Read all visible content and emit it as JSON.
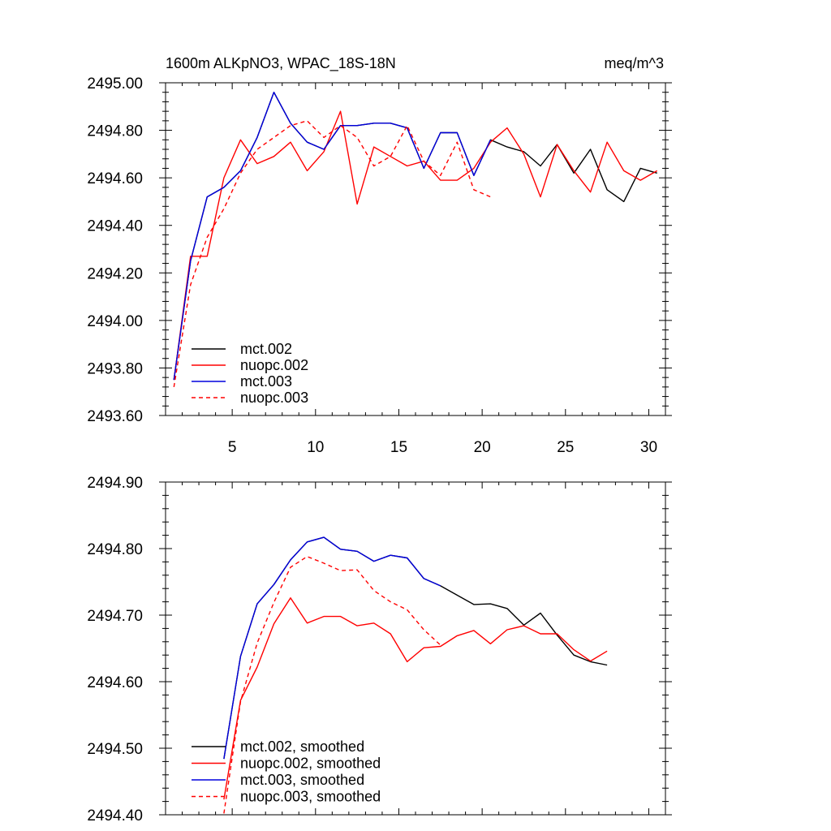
{
  "chart_data": [
    {
      "type": "line",
      "title_left": "1600m ALKpNO3, WPAC_18S-18N",
      "title_right": "meq/m^3",
      "xlabel": "",
      "ylabel": "",
      "xlim": [
        1,
        31
      ],
      "ylim": [
        2493.6,
        2495.0
      ],
      "xticks": [
        5,
        10,
        15,
        20,
        25,
        30
      ],
      "xtick_labels": [
        "5",
        "10",
        "15",
        "20",
        "25",
        "30"
      ],
      "yticks": [
        2493.6,
        2493.8,
        2494.0,
        2494.2,
        2494.4,
        2494.6,
        2494.8,
        2495.0
      ],
      "ytick_labels": [
        "2493.60",
        "2493.80",
        "2494.00",
        "2494.20",
        "2494.40",
        "2494.60",
        "2494.80",
        "2495.00"
      ],
      "legend_position": "bottom-left",
      "series": [
        {
          "name": "mct.002",
          "color": "#000000",
          "dash": false,
          "x": [
            1.5,
            2.5,
            3.5,
            4.5,
            5.5,
            6.5,
            7.5,
            8.5,
            9.5,
            10.5,
            11.5,
            12.5,
            13.5,
            14.5,
            15.5,
            16.5,
            17.5,
            18.5,
            19.5,
            20.5,
            21.5,
            22.5,
            23.5,
            24.5,
            25.5,
            26.5,
            27.5,
            28.5,
            29.5,
            30.5
          ],
          "values": [
            2493.75,
            2494.25,
            2494.52,
            2494.56,
            2494.63,
            2494.77,
            2494.96,
            2494.83,
            2494.75,
            2494.72,
            2494.82,
            2494.82,
            2494.83,
            2494.83,
            2494.81,
            2494.64,
            2494.79,
            2494.79,
            2494.61,
            2494.76,
            2494.73,
            2494.71,
            2494.65,
            2494.74,
            2494.62,
            2494.72,
            2494.55,
            2494.5,
            2494.64,
            2494.62
          ]
        },
        {
          "name": "nuopc.002",
          "color": "#ff0000",
          "dash": false,
          "x": [
            1.5,
            2.5,
            3.5,
            4.5,
            5.5,
            6.5,
            7.5,
            8.5,
            9.5,
            10.5,
            11.5,
            12.5,
            13.5,
            14.5,
            15.5,
            16.5,
            17.5,
            18.5,
            19.5,
            20.5,
            21.5,
            22.5,
            23.5,
            24.5,
            25.5,
            26.5,
            27.5,
            28.5,
            29.5,
            30.5
          ],
          "values": [
            2493.75,
            2494.27,
            2494.27,
            2494.6,
            2494.76,
            2494.66,
            2494.69,
            2494.75,
            2494.63,
            2494.71,
            2494.88,
            2494.49,
            2494.73,
            2494.69,
            2494.65,
            2494.67,
            2494.59,
            2494.59,
            2494.64,
            2494.75,
            2494.81,
            2494.7,
            2494.52,
            2494.74,
            2494.63,
            2494.54,
            2494.75,
            2494.63,
            2494.59,
            2494.63
          ]
        },
        {
          "name": "mct.003",
          "color": "#0000dd",
          "dash": false,
          "x": [
            1.5,
            2.5,
            3.5,
            4.5,
            5.5,
            6.5,
            7.5,
            8.5,
            9.5,
            10.5,
            11.5,
            12.5,
            13.5,
            14.5,
            15.5,
            16.5,
            17.5,
            18.5,
            19.5,
            20.5
          ],
          "values": [
            2493.75,
            2494.25,
            2494.52,
            2494.56,
            2494.63,
            2494.77,
            2494.96,
            2494.83,
            2494.75,
            2494.72,
            2494.82,
            2494.82,
            2494.83,
            2494.83,
            2494.81,
            2494.64,
            2494.79,
            2494.79,
            2494.61,
            2494.76
          ]
        },
        {
          "name": "nuopc.003",
          "color": "#ff0000",
          "dash": true,
          "x": [
            1.5,
            2.5,
            3.5,
            4.5,
            5.5,
            6.5,
            7.5,
            8.5,
            9.5,
            10.5,
            11.5,
            12.5,
            13.5,
            14.5,
            15.5,
            16.5,
            17.5,
            18.5,
            19.5,
            20.5
          ],
          "values": [
            2493.72,
            2494.15,
            2494.35,
            2494.47,
            2494.62,
            2494.72,
            2494.77,
            2494.82,
            2494.84,
            2494.77,
            2494.82,
            2494.77,
            2494.65,
            2494.69,
            2494.82,
            2494.67,
            2494.61,
            2494.75,
            2494.55,
            2494.52
          ]
        }
      ]
    },
    {
      "type": "line",
      "title": "",
      "xlabel": "",
      "ylabel": "",
      "xlim": [
        1,
        31
      ],
      "ylim": [
        2494.4,
        2494.9
      ],
      "xticks": [
        5,
        10,
        15,
        20,
        25,
        30
      ],
      "yticks": [
        2494.4,
        2494.5,
        2494.6,
        2494.7,
        2494.8,
        2494.9
      ],
      "ytick_labels": [
        "2494.40",
        "2494.50",
        "2494.60",
        "2494.70",
        "2494.80",
        "2494.90"
      ],
      "legend_position": "bottom-left",
      "series": [
        {
          "name": "mct.002, smoothed",
          "color": "#000000",
          "dash": false,
          "x": [
            4.5,
            5.5,
            6.5,
            7.5,
            8.5,
            9.5,
            10.5,
            11.5,
            12.5,
            13.5,
            14.5,
            15.5,
            16.5,
            17.5,
            18.5,
            19.5,
            20.5,
            21.5,
            22.5,
            23.5,
            24.5,
            25.5,
            26.5,
            27.5
          ],
          "values": [
            2494.484,
            2494.638,
            2494.717,
            2494.746,
            2494.783,
            2494.81,
            2494.817,
            2494.799,
            2494.796,
            2494.781,
            2494.79,
            2494.786,
            2494.755,
            2494.744,
            2494.73,
            2494.716,
            2494.717,
            2494.71,
            2494.685,
            2494.703,
            2494.67,
            2494.64,
            2494.63,
            2494.625
          ]
        },
        {
          "name": "nuopc.002, smoothed",
          "color": "#ff0000",
          "dash": false,
          "x": [
            4.5,
            5.5,
            6.5,
            7.5,
            8.5,
            9.5,
            10.5,
            11.5,
            12.5,
            13.5,
            14.5,
            15.5,
            16.5,
            17.5,
            18.5,
            19.5,
            20.5,
            21.5,
            22.5,
            23.5,
            24.5,
            25.5,
            26.5,
            27.5
          ],
          "values": [
            2494.423,
            2494.572,
            2494.622,
            2494.687,
            2494.726,
            2494.688,
            2494.698,
            2494.698,
            2494.684,
            2494.688,
            2494.672,
            2494.63,
            2494.651,
            2494.653,
            2494.669,
            2494.677,
            2494.657,
            2494.678,
            2494.684,
            2494.672,
            2494.672,
            2494.648,
            2494.631,
            2494.646
          ]
        },
        {
          "name": "mct.003, smoothed",
          "color": "#0000dd",
          "dash": false,
          "x": [
            4.5,
            5.5,
            6.5,
            7.5,
            8.5,
            9.5,
            10.5,
            11.5,
            12.5,
            13.5,
            14.5,
            15.5,
            16.5,
            17.5
          ],
          "values": [
            2494.484,
            2494.638,
            2494.717,
            2494.746,
            2494.783,
            2494.81,
            2494.817,
            2494.799,
            2494.796,
            2494.781,
            2494.79,
            2494.786,
            2494.755,
            2494.744
          ]
        },
        {
          "name": "nuopc.003, smoothed",
          "color": "#ff0000",
          "dash": true,
          "x": [
            4.5,
            5.5,
            6.5,
            7.5,
            8.5,
            9.5,
            10.5,
            11.5,
            12.5,
            13.5,
            14.5,
            15.5,
            16.5,
            17.5
          ],
          "values": [
            2494.402,
            2494.57,
            2494.658,
            2494.719,
            2494.772,
            2494.788,
            2494.778,
            2494.767,
            2494.768,
            2494.737,
            2494.72,
            2494.708,
            2494.678,
            2494.655
          ]
        }
      ]
    }
  ]
}
